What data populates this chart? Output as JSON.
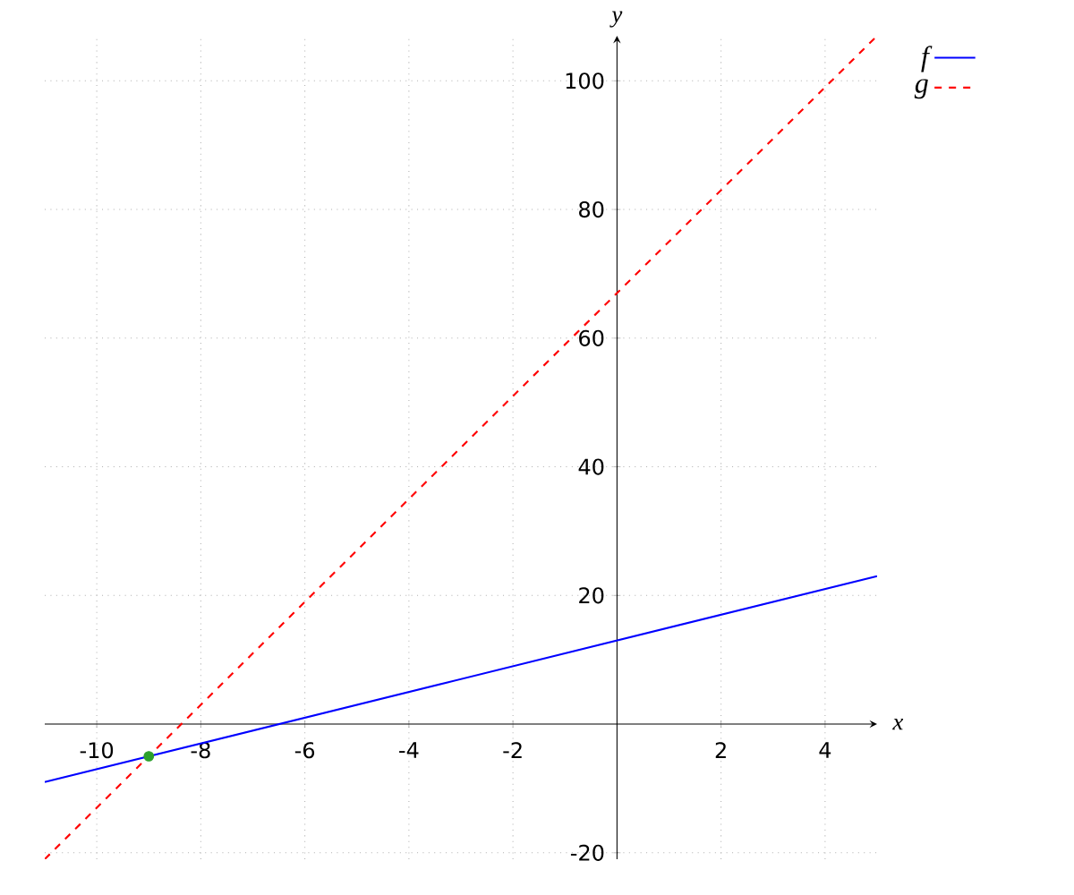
{
  "chart_data": {
    "type": "line",
    "xlabel": "x",
    "ylabel": "y",
    "xlim": [
      -11,
      5
    ],
    "ylim": [
      -21,
      107
    ],
    "xticks": [
      -10,
      -8,
      -6,
      -4,
      -2,
      2,
      4
    ],
    "yticks": [
      -20,
      20,
      40,
      60,
      80,
      100
    ],
    "grid": true,
    "legend": "top right",
    "series": [
      {
        "name": "f",
        "color": "#0000ff",
        "x": [
          -11,
          5
        ],
        "values": [
          -9,
          23
        ],
        "line_style": "solid",
        "marker": "none"
      },
      {
        "name": "g",
        "color": "#ff0000",
        "x": [
          -11,
          5
        ],
        "values": [
          -21,
          107
        ],
        "line_style": "dashed",
        "marker": "none"
      },
      {
        "type": "scatter",
        "color": "#2ca02c",
        "x": [
          -9
        ],
        "values": [
          -5
        ],
        "marker": "circle"
      }
    ]
  }
}
